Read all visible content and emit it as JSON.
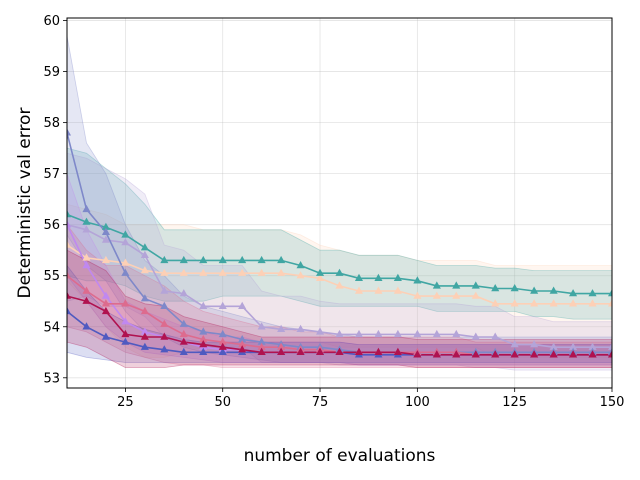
{
  "chart_data": {
    "type": "line",
    "title": "",
    "xlabel": "number of evaluations",
    "ylabel": "Deterministic val error",
    "xlim": [
      10,
      150
    ],
    "ylim": [
      52.8,
      60.05
    ],
    "xticks": [
      25,
      50,
      75,
      100,
      125,
      150
    ],
    "yticks": [
      53,
      54,
      55,
      56,
      57,
      58,
      59,
      60
    ],
    "grid": true,
    "legend": "none",
    "x": [
      10,
      15,
      20,
      25,
      30,
      35,
      40,
      45,
      50,
      55,
      60,
      65,
      70,
      75,
      80,
      85,
      90,
      95,
      100,
      105,
      110,
      115,
      120,
      125,
      130,
      135,
      140,
      145,
      150
    ],
    "series": [
      {
        "name": "peach",
        "color": "#fdd0b6",
        "values": [
          55.6,
          55.35,
          55.3,
          55.25,
          55.1,
          55.05,
          55.05,
          55.05,
          55.05,
          55.05,
          55.05,
          55.05,
          55.0,
          54.95,
          54.8,
          54.7,
          54.7,
          54.7,
          54.6,
          54.6,
          54.6,
          54.6,
          54.45,
          54.45,
          54.45,
          54.45,
          54.45,
          54.45,
          54.45
        ],
        "lower": [
          54.9,
          54.5,
          54.0,
          53.6,
          53.4,
          53.4,
          53.5,
          53.6,
          53.7,
          53.7,
          53.7,
          53.7,
          53.7,
          53.7,
          53.6,
          53.6,
          53.6,
          53.6,
          53.6,
          53.6,
          53.6,
          53.6,
          53.4,
          53.4,
          53.4,
          53.4,
          53.4,
          53.4,
          53.4
        ],
        "upper": [
          56.4,
          56.3,
          56.2,
          56.0,
          56.0,
          56.0,
          56.0,
          55.9,
          55.9,
          55.9,
          55.9,
          55.9,
          55.8,
          55.6,
          55.5,
          55.4,
          55.4,
          55.4,
          55.3,
          55.3,
          55.3,
          55.3,
          55.2,
          55.2,
          55.2,
          55.2,
          55.2,
          55.2,
          55.2
        ]
      },
      {
        "name": "teal",
        "color": "#40a6a3",
        "values": [
          56.2,
          56.05,
          55.95,
          55.8,
          55.55,
          55.3,
          55.3,
          55.3,
          55.3,
          55.3,
          55.3,
          55.3,
          55.2,
          55.05,
          55.05,
          54.95,
          54.95,
          54.95,
          54.9,
          54.8,
          54.8,
          54.8,
          54.75,
          54.75,
          54.7,
          54.7,
          54.65,
          54.65,
          54.65
        ],
        "lower": [
          55.0,
          54.9,
          54.9,
          54.8,
          54.6,
          54.5,
          54.5,
          54.5,
          54.6,
          54.6,
          54.6,
          54.6,
          54.5,
          54.4,
          54.4,
          54.4,
          54.4,
          54.4,
          54.4,
          54.3,
          54.3,
          54.3,
          54.3,
          54.3,
          54.2,
          54.2,
          54.15,
          54.15,
          54.15
        ],
        "upper": [
          57.5,
          57.4,
          57.1,
          56.8,
          56.4,
          55.9,
          55.9,
          55.9,
          55.9,
          55.9,
          55.9,
          55.9,
          55.7,
          55.5,
          55.5,
          55.4,
          55.4,
          55.4,
          55.3,
          55.2,
          55.2,
          55.2,
          55.15,
          55.15,
          55.1,
          55.1,
          55.1,
          55.1,
          55.1
        ]
      },
      {
        "name": "lavender",
        "color": "#b4a4d8",
        "values": [
          56.0,
          55.9,
          55.7,
          55.65,
          55.4,
          54.7,
          54.65,
          54.4,
          54.4,
          54.4,
          54.0,
          53.95,
          53.95,
          53.9,
          53.85,
          53.85,
          53.85,
          53.85,
          53.85,
          53.85,
          53.85,
          53.8,
          53.8,
          53.65,
          53.65,
          53.6,
          53.6,
          53.6,
          53.6
        ],
        "lower": [
          54.5,
          54.6,
          54.4,
          54.4,
          54.2,
          53.8,
          53.8,
          53.6,
          53.6,
          53.6,
          53.3,
          53.3,
          53.3,
          53.3,
          53.25,
          53.25,
          53.25,
          53.25,
          53.25,
          53.25,
          53.25,
          53.2,
          53.2,
          53.15,
          53.15,
          53.15,
          53.15,
          53.15,
          53.15
        ],
        "upper": [
          57.4,
          57.3,
          57.1,
          56.9,
          56.6,
          55.6,
          55.5,
          55.2,
          55.2,
          55.2,
          54.7,
          54.6,
          54.6,
          54.5,
          54.45,
          54.45,
          54.45,
          54.45,
          54.45,
          54.45,
          54.45,
          54.4,
          54.4,
          54.2,
          54.2,
          54.1,
          54.1,
          54.1,
          54.1
        ]
      },
      {
        "name": "periwinkle",
        "color": "#7e88c9",
        "values": [
          57.8,
          56.3,
          55.85,
          55.05,
          54.55,
          54.4,
          54.05,
          53.9,
          53.85,
          53.75,
          53.7,
          53.65,
          53.6,
          53.6,
          53.55,
          53.5,
          53.5,
          53.5,
          53.5,
          53.5,
          53.5,
          53.5,
          53.5,
          53.5,
          53.5,
          53.5,
          53.5,
          53.5,
          53.5
        ],
        "lower": [
          55.8,
          55.2,
          54.9,
          54.3,
          53.9,
          53.8,
          53.6,
          53.5,
          53.45,
          53.4,
          53.35,
          53.3,
          53.3,
          53.3,
          53.3,
          53.25,
          53.25,
          53.25,
          53.25,
          53.25,
          53.25,
          53.25,
          53.25,
          53.25,
          53.25,
          53.25,
          53.25,
          53.25,
          53.25
        ],
        "upper": [
          59.7,
          57.6,
          57.0,
          56.0,
          55.3,
          55.0,
          54.6,
          54.4,
          54.3,
          54.2,
          54.1,
          54.0,
          53.95,
          53.9,
          53.85,
          53.8,
          53.8,
          53.8,
          53.8,
          53.8,
          53.8,
          53.8,
          53.8,
          53.8,
          53.8,
          53.8,
          53.8,
          53.8,
          53.8
        ]
      },
      {
        "name": "violet",
        "color": "#c088f0",
        "values": [
          56.0,
          55.2,
          54.6,
          54.1,
          53.9,
          53.8,
          53.7,
          53.6,
          53.55,
          53.55,
          53.5,
          53.5,
          53.5,
          53.5,
          53.5,
          53.45,
          53.45,
          53.45,
          53.45,
          53.45,
          53.45,
          53.45,
          53.45,
          53.45,
          53.45,
          53.45,
          53.45,
          53.45,
          53.45
        ],
        "lower": [
          55.0,
          54.5,
          54.0,
          53.7,
          53.5,
          53.45,
          53.4,
          53.35,
          53.3,
          53.3,
          53.3,
          53.3,
          53.3,
          53.3,
          53.3,
          53.25,
          53.25,
          53.25,
          53.25,
          53.25,
          53.25,
          53.25,
          53.25,
          53.25,
          53.25,
          53.25,
          53.25,
          53.25,
          53.25
        ],
        "upper": [
          57.0,
          55.9,
          55.2,
          54.5,
          54.3,
          54.15,
          54.0,
          53.9,
          53.8,
          53.8,
          53.7,
          53.7,
          53.7,
          53.7,
          53.7,
          53.65,
          53.65,
          53.65,
          53.65,
          53.65,
          53.65,
          53.65,
          53.65,
          53.65,
          53.65,
          53.65,
          53.65,
          53.65,
          53.65
        ]
      },
      {
        "name": "rose",
        "color": "#dd6b8e",
        "values": [
          55.0,
          54.7,
          54.45,
          54.45,
          54.3,
          54.05,
          53.85,
          53.75,
          53.7,
          53.65,
          53.6,
          53.6,
          53.55,
          53.55,
          53.5,
          53.5,
          53.5,
          53.5,
          53.5,
          53.5,
          53.5,
          53.45,
          53.45,
          53.45,
          53.45,
          53.45,
          53.45,
          53.45,
          53.45
        ],
        "lower": [
          54.0,
          53.9,
          53.7,
          53.5,
          53.4,
          53.3,
          53.25,
          53.25,
          53.2,
          53.2,
          53.2,
          53.2,
          53.2,
          53.2,
          53.2,
          53.2,
          53.2,
          53.2,
          53.2,
          53.2,
          53.2,
          53.2,
          53.2,
          53.2,
          53.2,
          53.2,
          53.2,
          53.2,
          53.2
        ],
        "upper": [
          56.0,
          55.5,
          55.2,
          55.2,
          55.0,
          54.8,
          54.5,
          54.3,
          54.2,
          54.1,
          54.0,
          54.0,
          53.9,
          53.9,
          53.8,
          53.8,
          53.8,
          53.8,
          53.8,
          53.8,
          53.8,
          53.7,
          53.7,
          53.7,
          53.7,
          53.7,
          53.7,
          53.7,
          53.7
        ]
      },
      {
        "name": "blue",
        "color": "#4f5ac0",
        "values": [
          54.3,
          54.0,
          53.8,
          53.7,
          53.6,
          53.55,
          53.5,
          53.5,
          53.5,
          53.5,
          53.5,
          53.5,
          53.5,
          53.5,
          53.5,
          53.45,
          53.45,
          53.45,
          53.45,
          53.45,
          53.45,
          53.45,
          53.45,
          53.45,
          53.45,
          53.45,
          53.45,
          53.45,
          53.45
        ],
        "lower": [
          53.5,
          53.4,
          53.35,
          53.3,
          53.3,
          53.3,
          53.3,
          53.3,
          53.3,
          53.3,
          53.3,
          53.3,
          53.3,
          53.3,
          53.3,
          53.3,
          53.3,
          53.3,
          53.3,
          53.3,
          53.3,
          53.3,
          53.3,
          53.3,
          53.3,
          53.3,
          53.3,
          53.3,
          53.3
        ],
        "upper": [
          55.2,
          54.7,
          54.3,
          54.1,
          53.95,
          53.85,
          53.75,
          53.7,
          53.7,
          53.7,
          53.7,
          53.7,
          53.7,
          53.7,
          53.7,
          53.65,
          53.65,
          53.65,
          53.65,
          53.65,
          53.65,
          53.65,
          53.65,
          53.65,
          53.65,
          53.65,
          53.65,
          53.65,
          53.65
        ]
      },
      {
        "name": "crimson",
        "color": "#b0124f",
        "values": [
          54.6,
          54.5,
          54.3,
          53.85,
          53.8,
          53.8,
          53.7,
          53.65,
          53.6,
          53.55,
          53.5,
          53.5,
          53.5,
          53.5,
          53.5,
          53.5,
          53.5,
          53.5,
          53.45,
          53.45,
          53.45,
          53.45,
          53.45,
          53.45,
          53.45,
          53.45,
          53.45,
          53.45,
          53.45
        ],
        "lower": [
          53.7,
          53.6,
          53.4,
          53.2,
          53.2,
          53.2,
          53.25,
          53.25,
          53.25,
          53.25,
          53.25,
          53.25,
          53.25,
          53.25,
          53.25,
          53.25,
          53.25,
          53.25,
          53.2,
          53.2,
          53.2,
          53.2,
          53.2,
          53.2,
          53.2,
          53.2,
          53.2,
          53.2,
          53.2
        ],
        "upper": [
          55.5,
          55.3,
          55.1,
          54.6,
          54.45,
          54.4,
          54.2,
          54.1,
          54.0,
          53.9,
          53.8,
          53.8,
          53.8,
          53.8,
          53.8,
          53.8,
          53.8,
          53.8,
          53.75,
          53.75,
          53.75,
          53.75,
          53.75,
          53.75,
          53.75,
          53.75,
          53.75,
          53.75,
          53.75
        ]
      }
    ]
  }
}
